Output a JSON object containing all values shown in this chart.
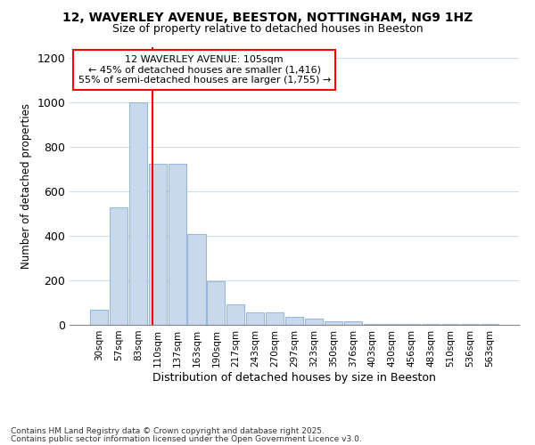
{
  "title1": "12, WAVERLEY AVENUE, BEESTON, NOTTINGHAM, NG9 1HZ",
  "title2": "Size of property relative to detached houses in Beeston",
  "xlabel": "Distribution of detached houses by size in Beeston",
  "ylabel": "Number of detached properties",
  "categories": [
    "30sqm",
    "57sqm",
    "83sqm",
    "110sqm",
    "137sqm",
    "163sqm",
    "190sqm",
    "217sqm",
    "243sqm",
    "270sqm",
    "297sqm",
    "323sqm",
    "350sqm",
    "376sqm",
    "403sqm",
    "430sqm",
    "456sqm",
    "483sqm",
    "510sqm",
    "536sqm",
    "563sqm"
  ],
  "values": [
    70,
    530,
    1000,
    725,
    725,
    410,
    198,
    93,
    57,
    57,
    35,
    30,
    17,
    17,
    3,
    3,
    3,
    3,
    3,
    3,
    3
  ],
  "bar_color": "#c8d9ee",
  "bar_edge_color": "#9ab8d8",
  "bar_edge_width": 0.8,
  "red_line_index": 2.75,
  "annotation_title": "12 WAVERLEY AVENUE: 105sqm",
  "annotation_line1": "← 45% of detached houses are smaller (1,416)",
  "annotation_line2": "55% of semi-detached houses are larger (1,755) →",
  "footnote1": "Contains HM Land Registry data © Crown copyright and database right 2025.",
  "footnote2": "Contains public sector information licensed under the Open Government Licence v3.0.",
  "ylim": [
    0,
    1250
  ],
  "yticks": [
    0,
    200,
    400,
    600,
    800,
    1000,
    1200
  ],
  "bg_color": "#ffffff",
  "fig_bg_color": "#ffffff",
  "grid_color": "#d0dce8"
}
